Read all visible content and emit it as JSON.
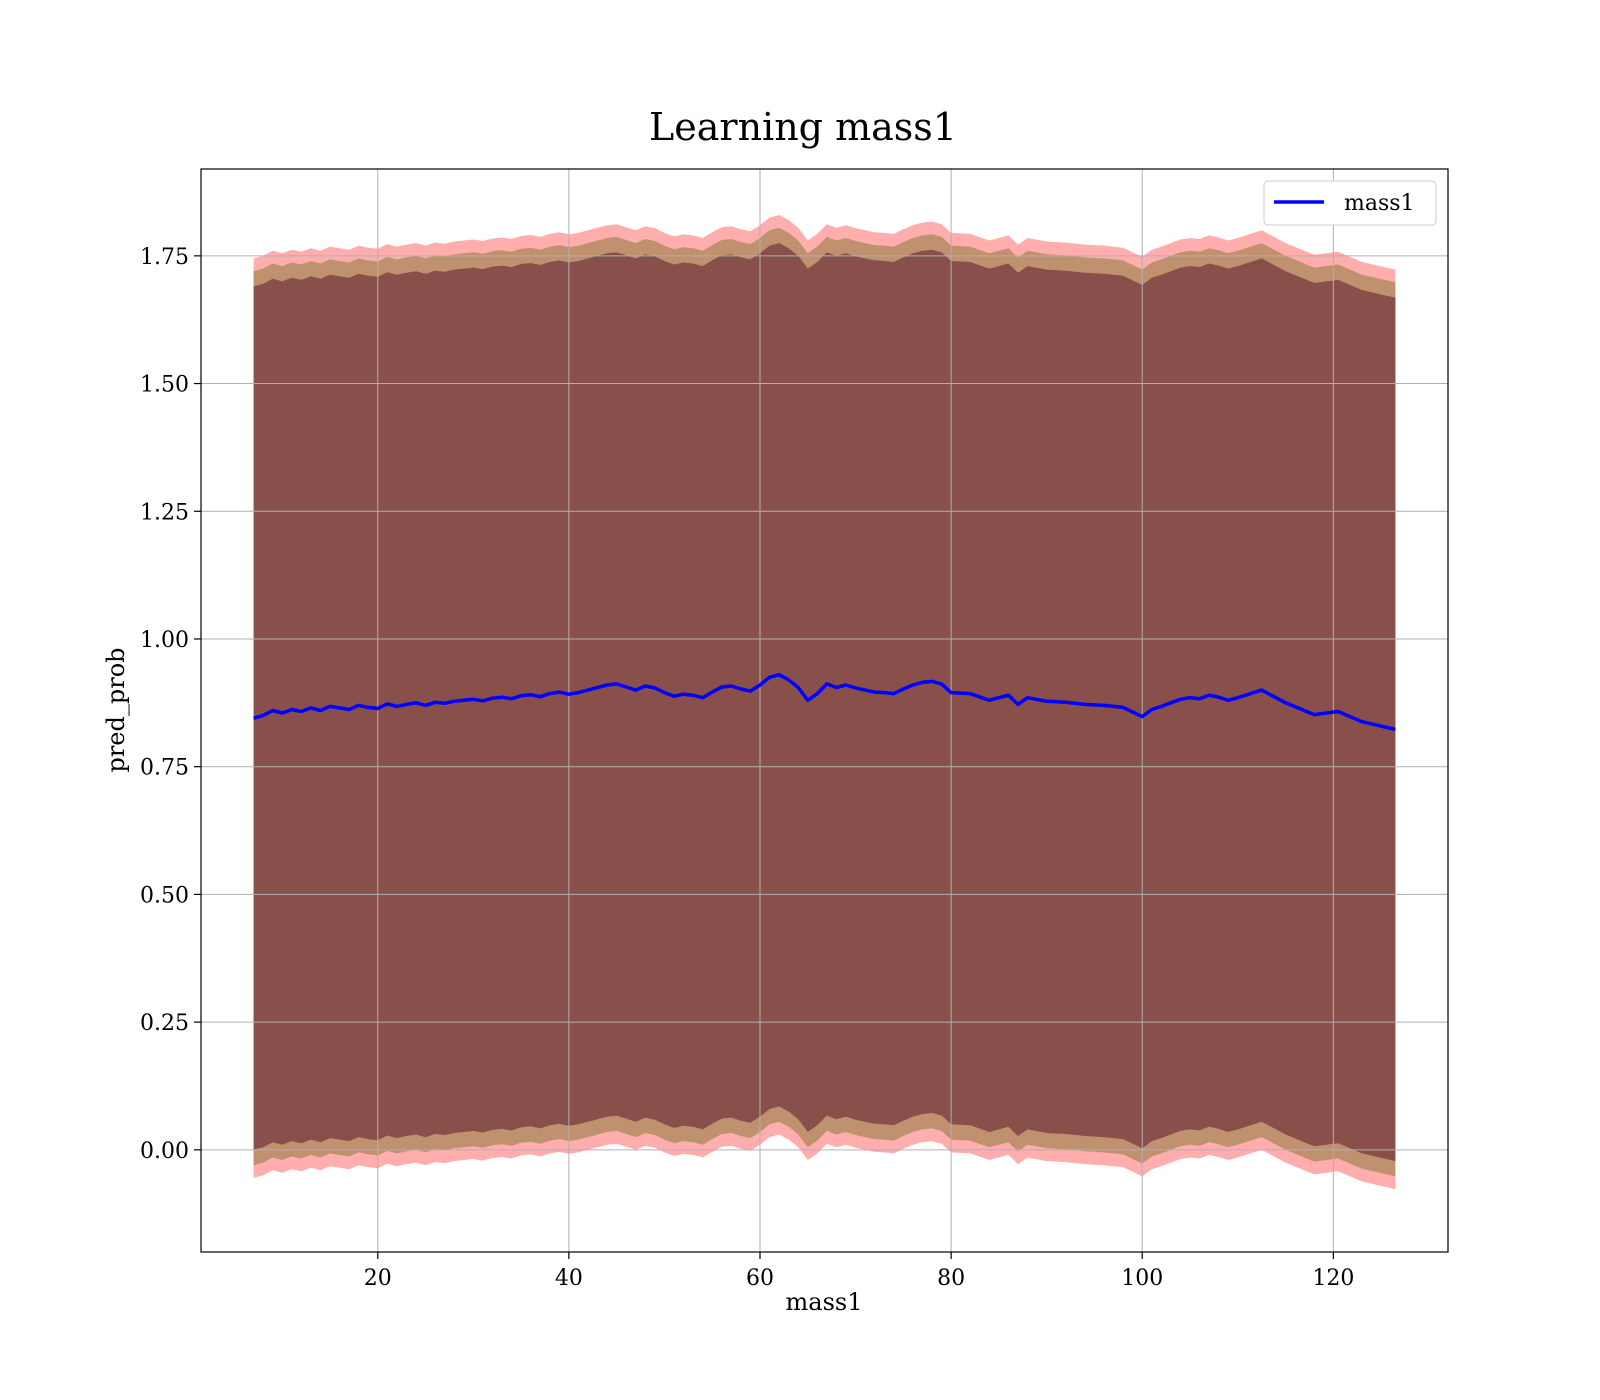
{
  "chart_data": {
    "type": "line",
    "title": "Learning mass1",
    "xlabel": "mass1",
    "ylabel": "pred_prob",
    "xlim": [
      1.5,
      132
    ],
    "ylim": [
      -0.2,
      1.92
    ],
    "xticks": [
      20,
      40,
      60,
      80,
      100,
      120
    ],
    "yticks": [
      0.0,
      0.25,
      0.5,
      0.75,
      1.0,
      1.25,
      1.5,
      1.75
    ],
    "xtick_labels": [
      "20",
      "40",
      "60",
      "80",
      "100",
      "120"
    ],
    "ytick_labels": [
      "0.00",
      "0.25",
      "0.50",
      "0.75",
      "1.00",
      "1.25",
      "1.50",
      "1.75"
    ],
    "grid": true,
    "legend": {
      "position": "top-right",
      "entries": [
        "mass1"
      ]
    },
    "colors": {
      "line": "#0000ff",
      "band_outer": "#ff0000",
      "band_middle": "#8c7a3a",
      "band_inner": "#5a1a30",
      "grid": "#b0b0b0"
    },
    "series": [
      {
        "name": "mass1",
        "x": [
          7,
          8,
          9,
          10,
          11,
          12,
          13,
          14,
          15,
          16,
          17,
          18,
          19,
          20,
          21,
          22,
          23,
          24,
          25,
          26,
          27,
          28,
          29,
          30,
          31,
          32,
          33,
          34,
          35,
          36,
          37,
          38,
          39,
          40,
          41,
          42,
          43,
          44,
          45,
          46,
          47,
          48,
          49,
          50,
          51,
          52,
          53,
          54,
          55,
          56,
          57,
          58,
          59,
          60,
          61,
          62,
          63,
          64,
          65,
          66,
          67,
          68,
          69,
          70,
          71,
          72,
          73,
          74,
          75,
          76,
          77,
          78,
          79,
          80,
          82,
          84,
          86,
          87,
          88,
          90,
          92,
          94,
          96,
          98,
          100,
          101,
          102,
          103,
          104,
          105,
          106,
          107,
          108,
          109,
          110,
          112.5,
          115,
          118,
          120.5,
          123,
          126.5
        ],
        "y": [
          0.845,
          0.85,
          0.86,
          0.855,
          0.862,
          0.858,
          0.865,
          0.86,
          0.868,
          0.865,
          0.862,
          0.87,
          0.866,
          0.864,
          0.873,
          0.868,
          0.872,
          0.875,
          0.87,
          0.876,
          0.874,
          0.878,
          0.88,
          0.882,
          0.879,
          0.884,
          0.886,
          0.883,
          0.889,
          0.891,
          0.887,
          0.893,
          0.896,
          0.892,
          0.895,
          0.9,
          0.905,
          0.91,
          0.912,
          0.906,
          0.9,
          0.908,
          0.904,
          0.895,
          0.888,
          0.892,
          0.89,
          0.885,
          0.896,
          0.906,
          0.908,
          0.902,
          0.898,
          0.91,
          0.925,
          0.93,
          0.92,
          0.905,
          0.88,
          0.893,
          0.912,
          0.905,
          0.91,
          0.904,
          0.9,
          0.896,
          0.895,
          0.893,
          0.902,
          0.91,
          0.915,
          0.917,
          0.912,
          0.895,
          0.893,
          0.88,
          0.89,
          0.872,
          0.885,
          0.878,
          0.876,
          0.872,
          0.87,
          0.866,
          0.848,
          0.862,
          0.868,
          0.875,
          0.882,
          0.885,
          0.883,
          0.89,
          0.886,
          0.88,
          0.885,
          0.9,
          0.875,
          0.852,
          0.858,
          0.838,
          0.823
        ]
      }
    ],
    "bands": [
      {
        "name": "outer",
        "half_width": 0.9
      },
      {
        "name": "middle",
        "half_width": 0.875
      },
      {
        "name": "inner",
        "half_width": 0.845
      }
    ]
  }
}
